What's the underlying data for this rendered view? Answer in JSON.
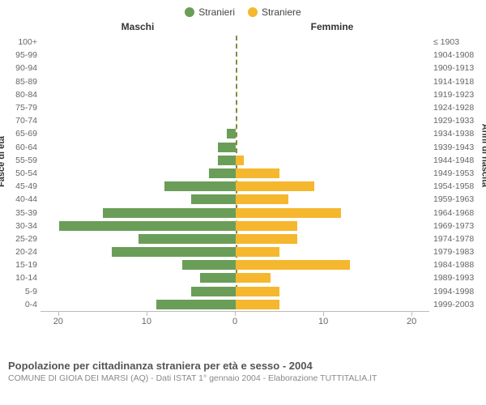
{
  "legend": {
    "items": [
      {
        "label": "Stranieri",
        "color": "#6a9e58"
      },
      {
        "label": "Straniere",
        "color": "#f5b72e"
      }
    ]
  },
  "section_titles": {
    "left": "Maschi",
    "right": "Femmine"
  },
  "axis_titles": {
    "left": "Fasce di età",
    "right": "Anni di nascita"
  },
  "x_axis": {
    "max": 22,
    "ticks": [
      20,
      10,
      0,
      10,
      20
    ]
  },
  "colors": {
    "male_bar": "#6a9e58",
    "female_bar": "#f5b72e",
    "grid": "#bbbbbb",
    "center_line": "#888844",
    "text_muted": "#666666"
  },
  "rows": [
    {
      "age": "100+",
      "birth": "≤ 1903",
      "m": 0,
      "f": 0
    },
    {
      "age": "95-99",
      "birth": "1904-1908",
      "m": 0,
      "f": 0
    },
    {
      "age": "90-94",
      "birth": "1909-1913",
      "m": 0,
      "f": 0
    },
    {
      "age": "85-89",
      "birth": "1914-1918",
      "m": 0,
      "f": 0
    },
    {
      "age": "80-84",
      "birth": "1919-1923",
      "m": 0,
      "f": 0
    },
    {
      "age": "75-79",
      "birth": "1924-1928",
      "m": 0,
      "f": 0
    },
    {
      "age": "70-74",
      "birth": "1929-1933",
      "m": 0,
      "f": 0
    },
    {
      "age": "65-69",
      "birth": "1934-1938",
      "m": 1,
      "f": 0
    },
    {
      "age": "60-64",
      "birth": "1939-1943",
      "m": 2,
      "f": 0
    },
    {
      "age": "55-59",
      "birth": "1944-1948",
      "m": 2,
      "f": 1
    },
    {
      "age": "50-54",
      "birth": "1949-1953",
      "m": 3,
      "f": 5
    },
    {
      "age": "45-49",
      "birth": "1954-1958",
      "m": 8,
      "f": 9
    },
    {
      "age": "40-44",
      "birth": "1959-1963",
      "m": 5,
      "f": 6
    },
    {
      "age": "35-39",
      "birth": "1964-1968",
      "m": 15,
      "f": 12
    },
    {
      "age": "30-34",
      "birth": "1969-1973",
      "m": 20,
      "f": 7
    },
    {
      "age": "25-29",
      "birth": "1974-1978",
      "m": 11,
      "f": 7
    },
    {
      "age": "20-24",
      "birth": "1979-1983",
      "m": 14,
      "f": 5
    },
    {
      "age": "15-19",
      "birth": "1984-1988",
      "m": 6,
      "f": 13
    },
    {
      "age": "10-14",
      "birth": "1989-1993",
      "m": 4,
      "f": 4
    },
    {
      "age": "5-9",
      "birth": "1994-1998",
      "m": 5,
      "f": 5
    },
    {
      "age": "0-4",
      "birth": "1999-2003",
      "m": 9,
      "f": 5
    }
  ],
  "caption": "Popolazione per cittadinanza straniera per età e sesso - 2004",
  "subcaption": "COMUNE DI GIOIA DEI MARSI (AQ) - Dati ISTAT 1° gennaio 2004 - Elaborazione TUTTITALIA.IT"
}
